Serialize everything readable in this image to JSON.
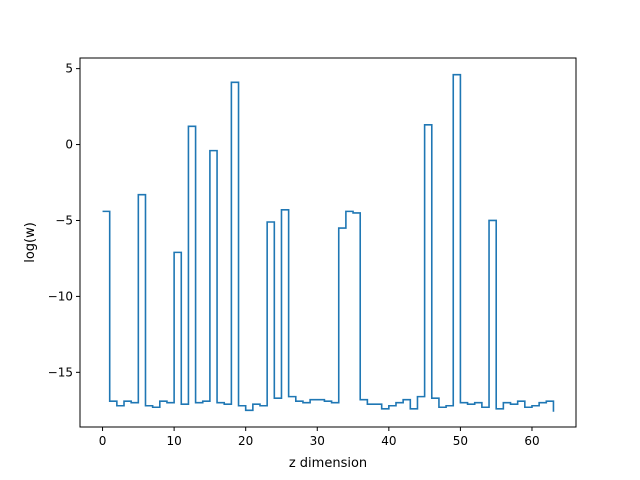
{
  "chart_data": {
    "type": "line",
    "drawstyle": "steps-post",
    "xlabel": "z dimension",
    "ylabel": "log(w)",
    "xlim": [
      -3.15,
      66.15
    ],
    "ylim": [
      -18.6,
      5.7
    ],
    "xticks": [
      0,
      10,
      20,
      30,
      40,
      50,
      60
    ],
    "yticks": [
      -15,
      -10,
      -5,
      0,
      5
    ],
    "xtick_labels": [
      "0",
      "10",
      "20",
      "30",
      "40",
      "50",
      "60"
    ],
    "ytick_labels": [
      "−15",
      "−10",
      "−5",
      "0",
      "5"
    ],
    "grid": false,
    "color": "#1f77b4",
    "series": [
      {
        "x": [
          0,
          1,
          2,
          3,
          4,
          5,
          6,
          7,
          8,
          9,
          10,
          11,
          12,
          13,
          14,
          15,
          16,
          17,
          18,
          19,
          20,
          21,
          22,
          23,
          24,
          25,
          26,
          27,
          28,
          29,
          30,
          31,
          32,
          33,
          34,
          35,
          36,
          37,
          38,
          39,
          40,
          41,
          42,
          43,
          44,
          45,
          46,
          47,
          48,
          49,
          50,
          51,
          52,
          53,
          54,
          55,
          56,
          57,
          58,
          59,
          60,
          61,
          62,
          63
        ],
        "values": [
          -4.4,
          -16.9,
          -17.2,
          -16.9,
          -17.0,
          -3.3,
          -17.2,
          -17.3,
          -16.9,
          -17.0,
          -7.1,
          -17.1,
          1.2,
          -17.0,
          -16.9,
          -0.4,
          -17.0,
          -17.1,
          4.1,
          -17.2,
          -17.5,
          -17.1,
          -17.2,
          -5.1,
          -16.7,
          -4.3,
          -16.6,
          -16.9,
          -17.0,
          -16.8,
          -16.8,
          -16.9,
          -17.0,
          -5.5,
          -4.4,
          -4.5,
          -16.8,
          -17.1,
          -17.1,
          -17.4,
          -17.2,
          -17.0,
          -16.8,
          -17.4,
          -16.6,
          1.3,
          -16.7,
          -17.3,
          -17.2,
          4.6,
          -17.0,
          -17.1,
          -17.0,
          -17.3,
          -5.0,
          -17.4,
          -17.0,
          -17.1,
          -16.9,
          -17.3,
          -17.2,
          -17.0,
          -16.9,
          -17.6
        ]
      }
    ]
  }
}
